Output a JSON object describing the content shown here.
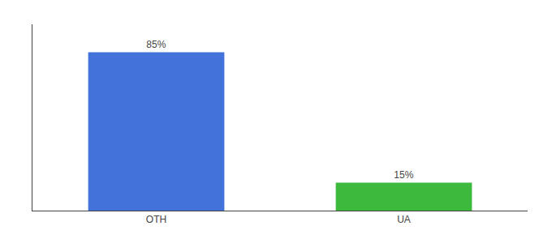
{
  "chart_data": {
    "type": "bar",
    "categories": [
      "OTH",
      "UA"
    ],
    "values": [
      85,
      15
    ],
    "value_labels": [
      "85%",
      "15%"
    ],
    "data_labels": true,
    "colors": [
      "#4472db",
      "#3dba3d"
    ],
    "ylim": [
      0,
      100
    ],
    "grid": false,
    "tick_labels": "x"
  }
}
